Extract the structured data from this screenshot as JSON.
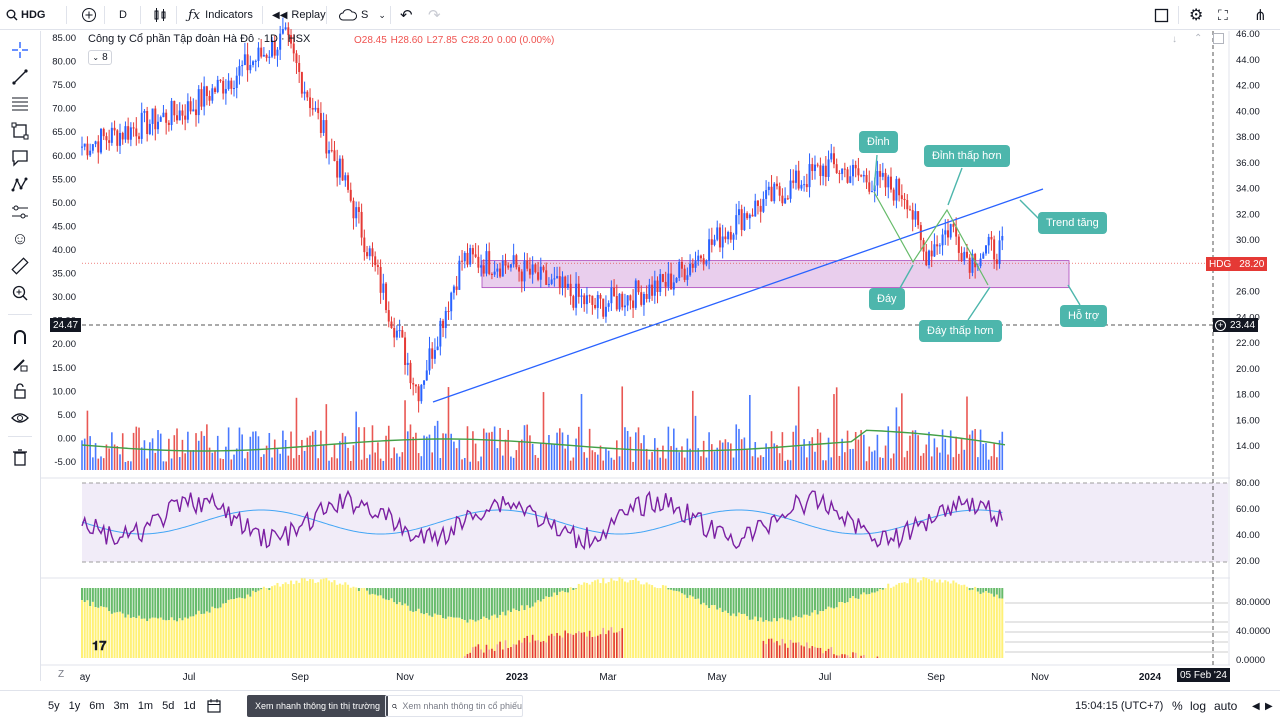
{
  "toolbar": {
    "symbol": "HDG",
    "interval": "D",
    "indicators_label": "Indicators",
    "replay_label": "Replay",
    "cloud_label": "S"
  },
  "legend": {
    "title": "Công ty Cổ phần Tập đoàn Hà Đô · 1D · HSX",
    "open": "O28.45",
    "high": "H28.60",
    "low": "L27.85",
    "close": "C28.20",
    "change": "0.00 (0.00%)",
    "indicator_count": "8"
  },
  "annotations": {
    "dinh": "Đỉnh",
    "dinh_thap_hon": "Đỉnh thấp hơn",
    "trend_tang": "Trend tăng",
    "day": "Đáy",
    "day_thap_hon": "Đáy thấp hơn",
    "ho_tro": "Hỗ trợ"
  },
  "price_tags": {
    "left_crosshair": "24.47",
    "symbol": "HDG",
    "last_price": "28.20",
    "right_crosshair": "23.44",
    "date_label": "05 Feb '24"
  },
  "colors": {
    "up": "#2962ff",
    "down": "#e53935",
    "trendline": "#2962ff",
    "zone": "#e1bee7",
    "rsi": "#7b1fa2",
    "rsi_ma": "#42a5f5",
    "vol_ma": "#43a047",
    "callout": "#4db6ac"
  },
  "bottom": {
    "ranges": [
      "5y",
      "1y",
      "6m",
      "3m",
      "1m",
      "5d",
      "1d"
    ],
    "news_button": "Xem nhanh thông tin thị trường",
    "search_placeholder": "Xem nhanh thông tin cổ phiếu",
    "clock": "15:04:15 (UTC+7)",
    "percent": "%",
    "log": "log",
    "auto": "auto"
  },
  "chart_data": {
    "type": "candlestick",
    "title": "Công ty Cổ phần Tập đoàn Hà Đô · 1D · HSX",
    "x_labels": [
      "ay",
      "Jul",
      "Sep",
      "Nov",
      "2023",
      "Mar",
      "May",
      "Jul",
      "Sep",
      "Nov",
      "2024"
    ],
    "left_axis_ticks": [
      "85.00",
      "80.00",
      "75.00",
      "70.00",
      "65.00",
      "60.00",
      "55.00",
      "50.00",
      "45.00",
      "40.00",
      "35.00",
      "30.00",
      "25.00",
      "20.00",
      "15.00",
      "10.00",
      "5.00",
      "0.00",
      "-5.00"
    ],
    "right_axis_ticks": [
      "46.00",
      "44.00",
      "42.00",
      "40.00",
      "38.00",
      "36.00",
      "34.00",
      "32.00",
      "30.00",
      "28.00",
      "26.00",
      "24.00",
      "22.00",
      "20.00",
      "18.00",
      "16.00",
      "14.00"
    ],
    "rsi_ticks": [
      "80.00",
      "60.00",
      "40.00",
      "20.00"
    ],
    "osc_ticks": [
      "80.0000",
      "40.0000",
      "0.0000"
    ],
    "left_ylim": [
      -5,
      85
    ],
    "left_anchors": {
      "x": [
        "2022-05",
        "2022-07",
        "2022-08-25",
        "2022-10",
        "2022-11-10",
        "2022-12-05",
        "2023-01",
        "2023-02-20",
        "2023-04",
        "2023-05-15",
        "2023-07",
        "2023-08-15",
        "2023-08-25",
        "2023-09-10",
        "2023-09-20",
        "2023-09-30"
      ],
      "y": [
        62,
        70,
        85,
        52,
        10,
        38,
        37,
        28,
        33,
        48,
        58,
        52,
        39,
        45,
        38,
        40
      ]
    },
    "current_price": 28.2,
    "support_zone": [
      26.3,
      28.4
    ],
    "rsi_levels": [
      80,
      20
    ]
  }
}
